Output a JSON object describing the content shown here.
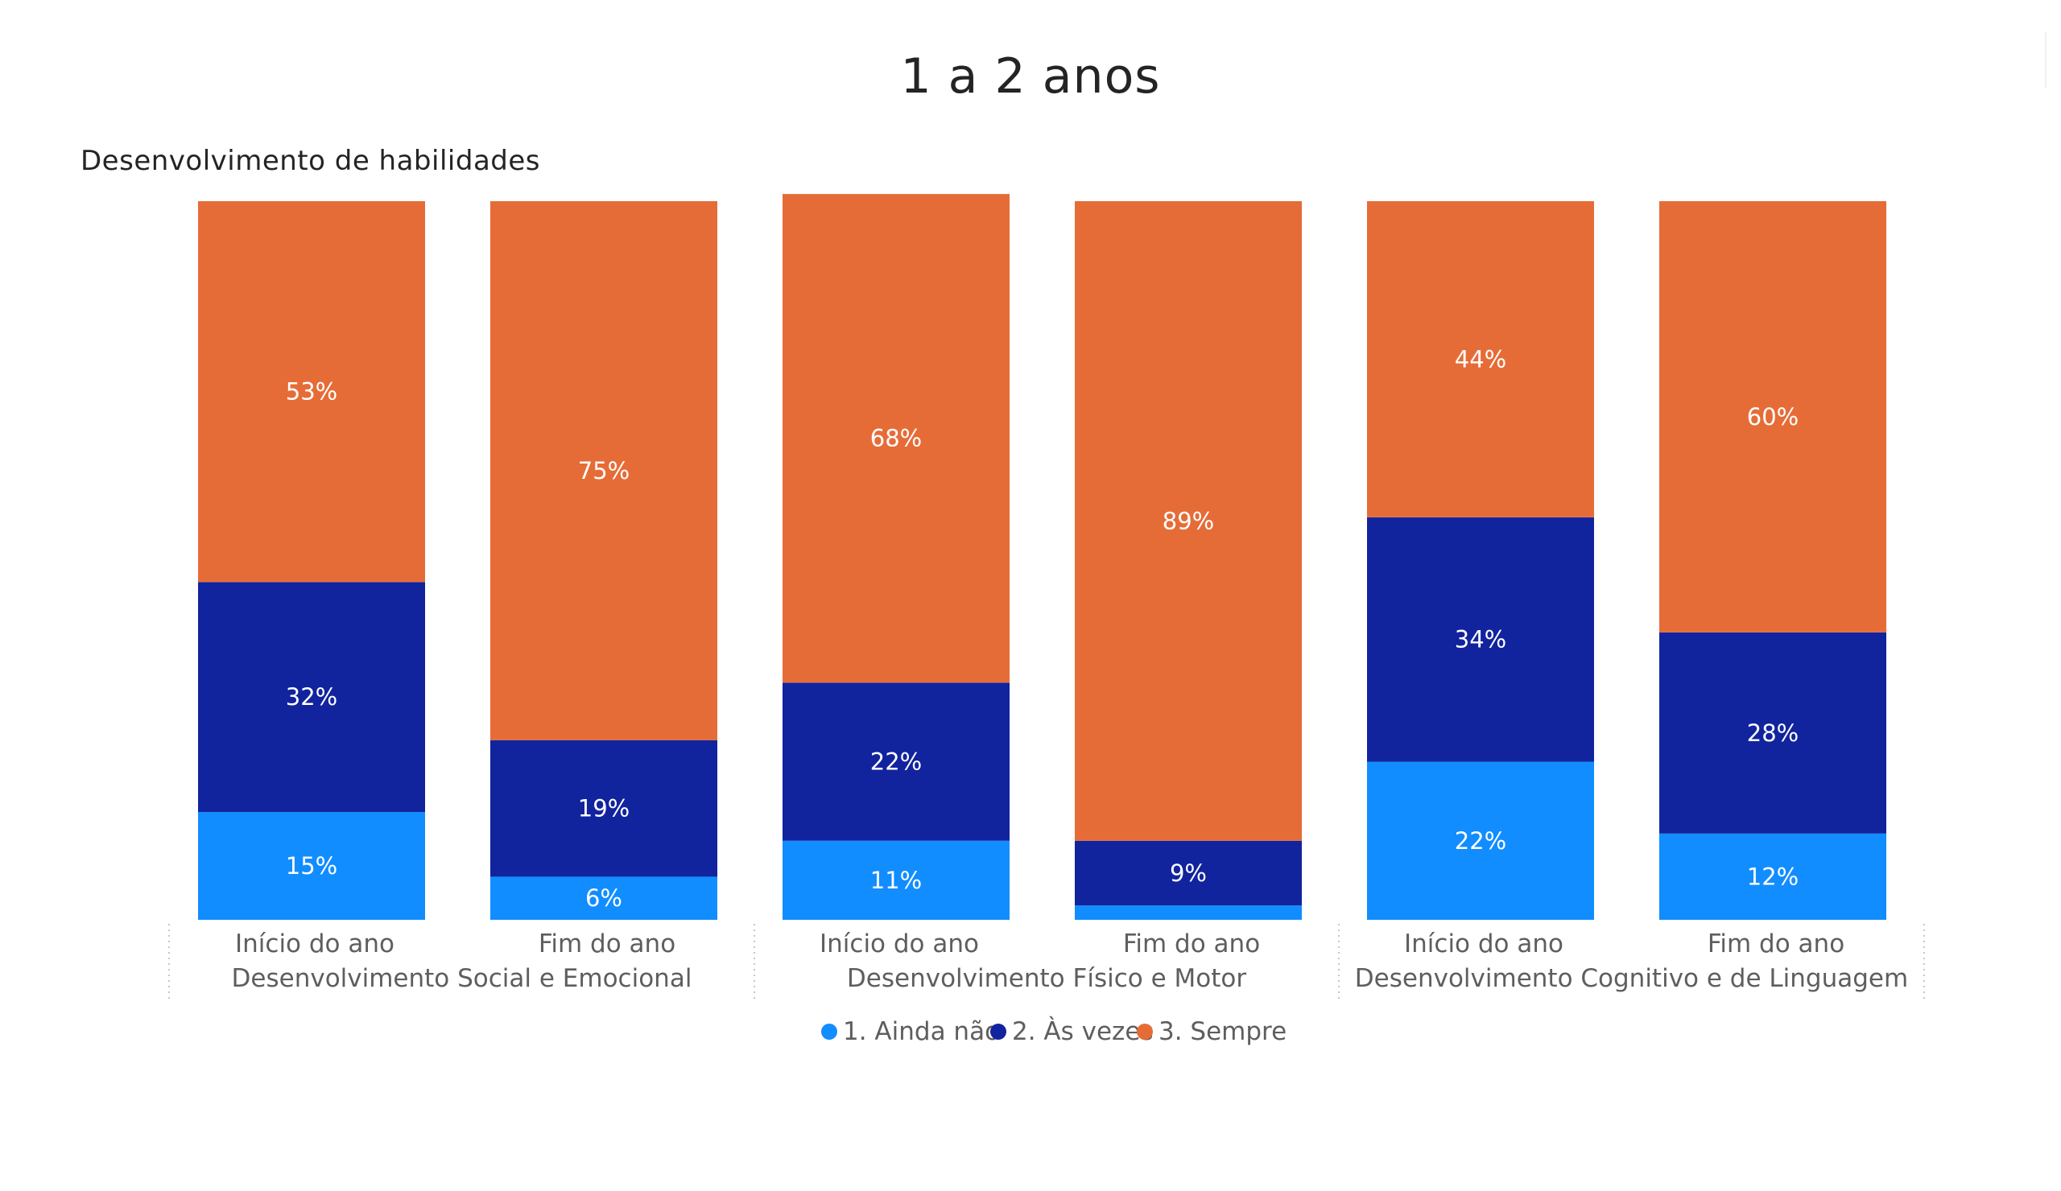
{
  "page": {
    "title": "1 a 2 anos"
  },
  "chart_data": {
    "type": "stacked-bar-100",
    "title": "Desenvolvimento de habilidades",
    "groups": [
      {
        "label": "Desenvolvimento Social e Emocional",
        "categories": [
          "Início do ano",
          "Fim do ano"
        ]
      },
      {
        "label": "Desenvolvimento Físico e Motor",
        "categories": [
          "Início do ano",
          "Fim do ano"
        ]
      },
      {
        "label": "Desenvolvimento Cognitivo e de Linguagem",
        "categories": [
          "Início do ano",
          "Fim do ano"
        ]
      }
    ],
    "series": [
      {
        "name": "1. Ainda não",
        "color": "#118DFF",
        "values": [
          15,
          6,
          11,
          2,
          22,
          12
        ],
        "labels": [
          "15%",
          "6%",
          "11%",
          "",
          "22%",
          "12%"
        ]
      },
      {
        "name": "2. Às vezes",
        "color": "#12239E",
        "values": [
          32,
          19,
          22,
          9,
          34,
          28
        ],
        "labels": [
          "32%",
          "19%",
          "22%",
          "9%",
          "34%",
          "28%"
        ]
      },
      {
        "name": "3. Sempre",
        "color": "#E66C37",
        "values": [
          53,
          75,
          68,
          89,
          44,
          60
        ],
        "labels": [
          "53%",
          "75%",
          "68%",
          "89%",
          "44%",
          "60%"
        ]
      }
    ],
    "ylim": [
      0,
      100
    ],
    "legend": {
      "position": "bottom-center"
    }
  }
}
